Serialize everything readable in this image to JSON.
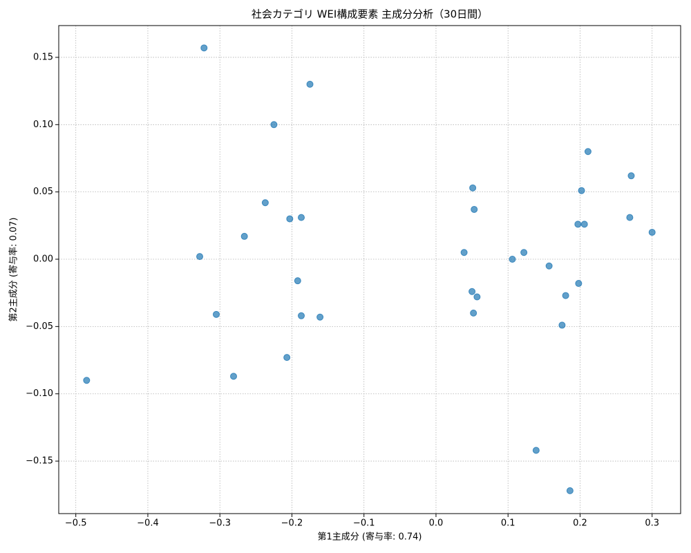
{
  "chart_data": {
    "type": "scatter",
    "title": "社会カテゴリ WEI構成要素 主成分分析（30日間）",
    "x_label": "第1主成分 (寄与率: 0.74)",
    "y_label": "第2主成分 (寄与率: 0.07)",
    "color": "#1f77b4",
    "grid": true,
    "xlim": [
      -0.5237,
      0.3396
    ],
    "ylim": [
      -0.189,
      0.1736
    ],
    "xticks": [
      {
        "value": -0.5,
        "label": "−0.5"
      },
      {
        "value": -0.4,
        "label": "−0.4"
      },
      {
        "value": -0.3,
        "label": "−0.3"
      },
      {
        "value": -0.2,
        "label": "−0.2"
      },
      {
        "value": -0.1,
        "label": "−0.1"
      },
      {
        "value": 0,
        "label": "0.0"
      },
      0.1,
      0.2,
      0.3
    ],
    "yticks": [
      {
        "value": -0.15,
        "label": "−0.15"
      },
      {
        "value": -0.1,
        "label": "−0.10"
      },
      {
        "value": -0.05,
        "label": "−0.05"
      },
      {
        "value": 0,
        "label": "0.00"
      },
      0.05,
      {
        "value": 0.1,
        "label": "0.10"
      },
      0.15
    ],
    "x": [
      -0.322,
      -0.175,
      -0.225,
      0.211,
      0.271,
      0.051,
      0.202,
      -0.237,
      0.053,
      -0.187,
      -0.203,
      0.269,
      0.197,
      0.206,
      -0.266,
      0.3,
      0.039,
      0.122,
      -0.328,
      0.106,
      0.157,
      -0.192,
      0.198,
      0.05,
      0.057,
      0.18,
      0.052,
      -0.305,
      -0.187,
      -0.161,
      0.175,
      -0.207,
      -0.281,
      -0.485,
      0.139,
      0.186
    ],
    "values": [
      0.157,
      0.13,
      0.1,
      0.08,
      0.062,
      0.053,
      0.051,
      0.042,
      0.037,
      0.031,
      0.03,
      0.031,
      0.026,
      0.026,
      0.017,
      0.02,
      0.005,
      0.005,
      0.002,
      0.0,
      -0.005,
      -0.016,
      -0.018,
      -0.024,
      -0.028,
      -0.027,
      -0.04,
      -0.041,
      -0.042,
      -0.043,
      -0.049,
      -0.073,
      -0.087,
      -0.09,
      -0.142,
      -0.172
    ]
  }
}
